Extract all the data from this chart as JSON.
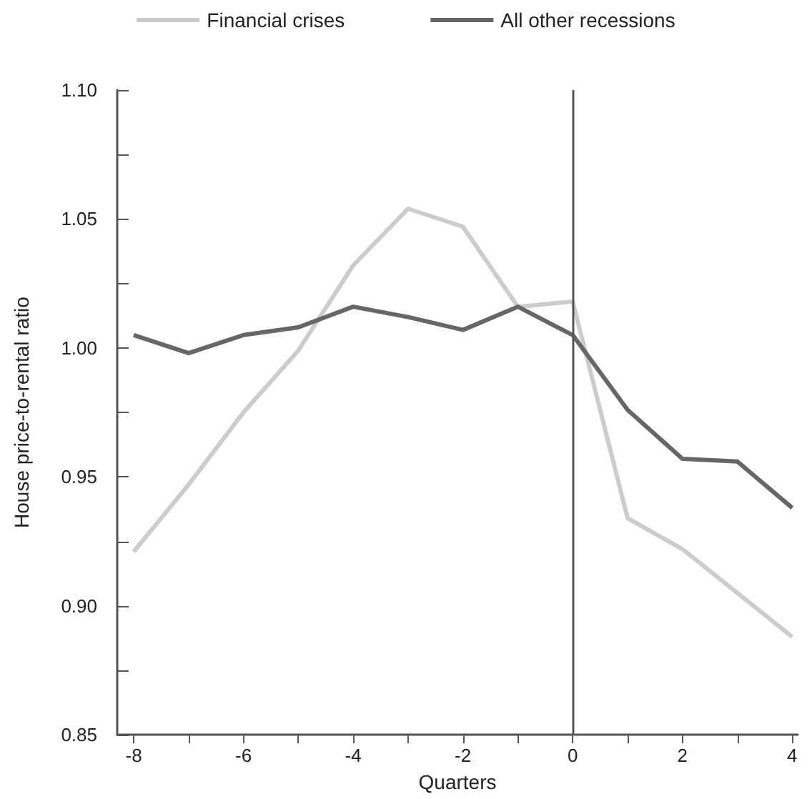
{
  "chart_data": {
    "type": "line",
    "xlabel": "Quarters",
    "ylabel": "House price-to-rental ratio",
    "x": [
      -8,
      -7,
      -6,
      -5,
      -4,
      -3,
      -2,
      -1,
      0,
      1,
      2,
      3,
      4
    ],
    "series": [
      {
        "name": "Financial crises",
        "color": "#cccccc",
        "values": [
          0.921,
          0.947,
          0.975,
          0.999,
          1.032,
          1.054,
          1.047,
          1.016,
          1.018,
          0.934,
          0.922,
          0.905,
          0.888
        ]
      },
      {
        "name": "All other recessions",
        "color": "#666666",
        "values": [
          1.005,
          0.998,
          1.005,
          1.008,
          1.016,
          1.012,
          1.007,
          1.016,
          1.005,
          0.976,
          0.957,
          0.956,
          0.938
        ]
      }
    ],
    "xlim": [
      -8.3,
      4.1
    ],
    "xticks": [
      -8,
      {
        "value": -7,
        "label": null
      },
      -6,
      {
        "value": -5,
        "label": null
      },
      -4,
      {
        "value": -3,
        "label": null
      },
      -2,
      {
        "value": -1,
        "label": null
      },
      0,
      {
        "value": 1,
        "label": null
      },
      2,
      {
        "value": 3,
        "label": null
      },
      4
    ],
    "ylim": [
      0.85,
      1.1
    ],
    "yticks": [
      {
        "value": 0.85,
        "label": "0.85"
      },
      {
        "value": 0.875,
        "label": null
      },
      {
        "value": 0.9,
        "label": "0.90"
      },
      {
        "value": 0.925,
        "label": null
      },
      {
        "value": 0.95,
        "label": "0.95"
      },
      {
        "value": 0.975,
        "label": null
      },
      {
        "value": 1.0,
        "label": "1.00"
      },
      {
        "value": 1.025,
        "label": null
      },
      {
        "value": 1.05,
        "label": "1.05"
      },
      {
        "value": 1.075,
        "label": null
      },
      {
        "value": 1.1,
        "label": "1.10"
      }
    ],
    "ref_lines": [
      {
        "axis": "x",
        "value": 0,
        "color": "#555555"
      }
    ],
    "grid": false,
    "legend": "top",
    "marker": "none",
    "line_style": "solid"
  }
}
